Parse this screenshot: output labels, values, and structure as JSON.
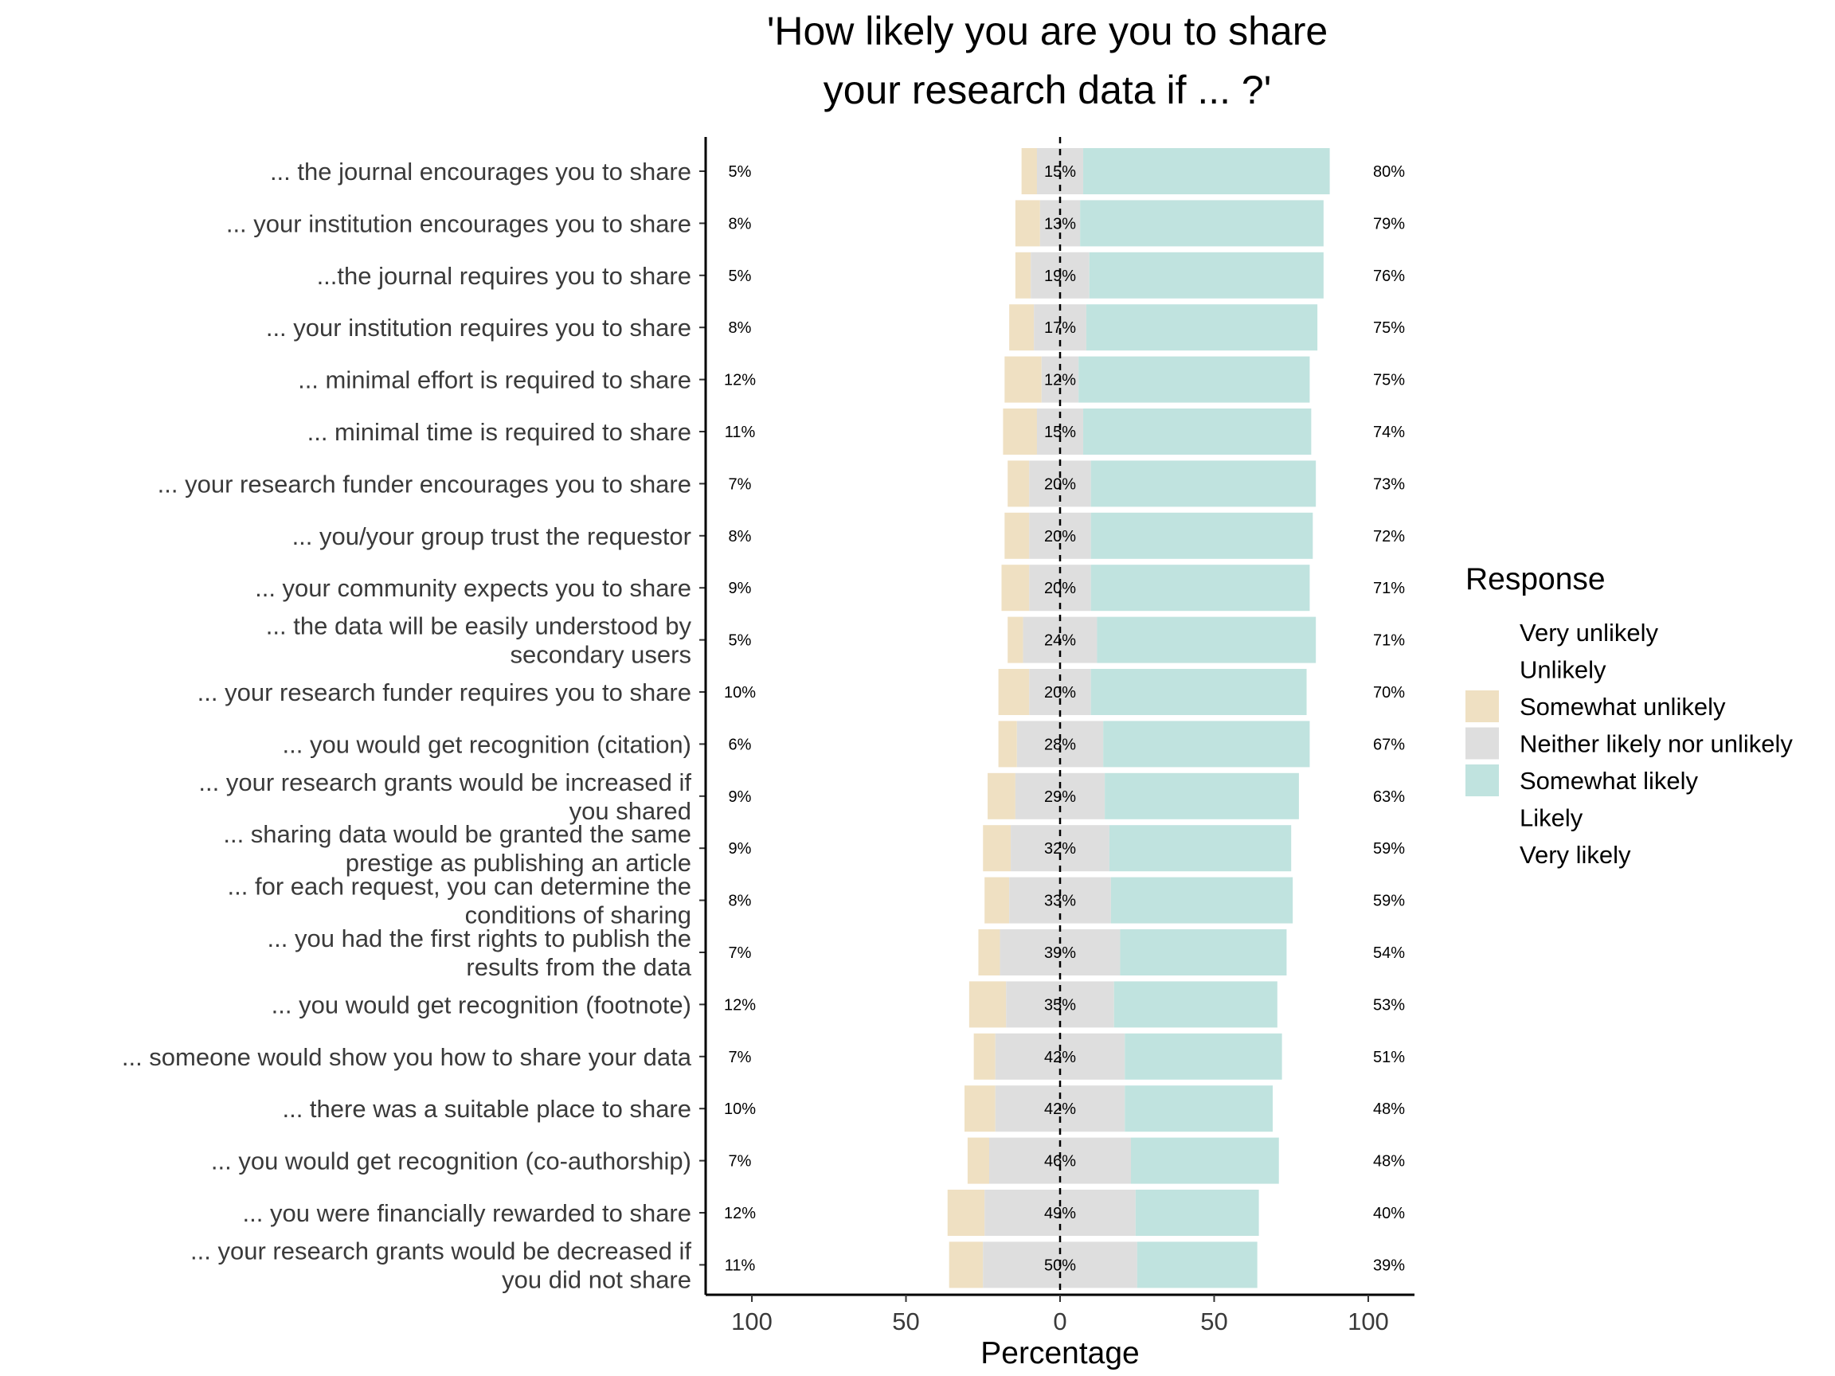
{
  "chart_data": {
    "type": "bar",
    "subtype": "diverging-stacked-likert",
    "title_lines": [
      "'How likely you are you to share",
      "your research data if ... ?'"
    ],
    "xlabel": "Percentage",
    "ylabel": "",
    "xlim": [
      -115,
      115
    ],
    "x_ticks": [
      -100,
      -50,
      0,
      50,
      100
    ],
    "x_tick_labels": [
      "100",
      "50",
      "0",
      "50",
      "100"
    ],
    "legend": {
      "title": "Response",
      "placement": "right",
      "entries": [
        {
          "label": "Very unlikely",
          "color": "#ffffff"
        },
        {
          "label": "Unlikely",
          "color": "#ffffff"
        },
        {
          "label": "Somewhat unlikely",
          "color": "#efe0c2"
        },
        {
          "label": "Neither likely nor unlikely",
          "color": "#dedede"
        },
        {
          "label": "Somewhat likely",
          "color": "#c0e3df"
        },
        {
          "label": "Likely",
          "color": "#ffffff"
        },
        {
          "label": "Very likely",
          "color": "#ffffff"
        }
      ]
    },
    "series": [
      {
        "name": "Somewhat unlikely",
        "color": "#efe0c2",
        "values": [
          5,
          8,
          5,
          8,
          12,
          11,
          7,
          8,
          9,
          5,
          10,
          6,
          9,
          9,
          8,
          7,
          12,
          7,
          10,
          7,
          12,
          11
        ]
      },
      {
        "name": "Neither likely nor unlikely",
        "color": "#dedede",
        "values": [
          15,
          13,
          19,
          17,
          12,
          15,
          20,
          20,
          20,
          24,
          20,
          28,
          29,
          32,
          33,
          39,
          35,
          42,
          42,
          46,
          49,
          50
        ]
      },
      {
        "name": "Somewhat likely",
        "color": "#c0e3df",
        "values": [
          80,
          79,
          76,
          75,
          75,
          74,
          73,
          72,
          71,
          71,
          70,
          67,
          63,
          59,
          59,
          54,
          53,
          51,
          48,
          48,
          40,
          39
        ]
      }
    ],
    "categories": [
      {
        "lines": [
          "... the journal encourages you to share"
        ],
        "low": "5%",
        "mid": "15%",
        "high": "80%"
      },
      {
        "lines": [
          "... your institution encourages you to share"
        ],
        "low": "8%",
        "mid": "13%",
        "high": "79%"
      },
      {
        "lines": [
          "...the journal requires you to share"
        ],
        "low": "5%",
        "mid": "19%",
        "high": "76%"
      },
      {
        "lines": [
          "... your institution requires you to share"
        ],
        "low": "8%",
        "mid": "17%",
        "high": "75%"
      },
      {
        "lines": [
          "... minimal effort is required to share"
        ],
        "low": "12%",
        "mid": "12%",
        "high": "75%"
      },
      {
        "lines": [
          "... minimal time is required to share"
        ],
        "low": "11%",
        "mid": "15%",
        "high": "74%"
      },
      {
        "lines": [
          "... your research funder encourages you to share"
        ],
        "low": "7%",
        "mid": "20%",
        "high": "73%"
      },
      {
        "lines": [
          "... you/your group trust the requestor"
        ],
        "low": "8%",
        "mid": "20%",
        "high": "72%"
      },
      {
        "lines": [
          "... your community expects you to share"
        ],
        "low": "9%",
        "mid": "20%",
        "high": "71%"
      },
      {
        "lines": [
          "... the data will be easily understood by",
          "secondary users"
        ],
        "low": "5%",
        "mid": "24%",
        "high": "71%"
      },
      {
        "lines": [
          "... your research funder requires you to share"
        ],
        "low": "10%",
        "mid": "20%",
        "high": "70%"
      },
      {
        "lines": [
          "... you would get recognition (citation)"
        ],
        "low": "6%",
        "mid": "28%",
        "high": "67%"
      },
      {
        "lines": [
          "... your research grants would be increased if",
          "you shared"
        ],
        "low": "9%",
        "mid": "29%",
        "high": "63%"
      },
      {
        "lines": [
          "... sharing data would be granted the same",
          "prestige as publishing an article"
        ],
        "low": "9%",
        "mid": "32%",
        "high": "59%"
      },
      {
        "lines": [
          "... for each request, you can determine the",
          "conditions of sharing"
        ],
        "low": "8%",
        "mid": "33%",
        "high": "59%"
      },
      {
        "lines": [
          "... you had the first rights to publish the",
          "results from the data"
        ],
        "low": "7%",
        "mid": "39%",
        "high": "54%"
      },
      {
        "lines": [
          "... you would get recognition (footnote)"
        ],
        "low": "12%",
        "mid": "35%",
        "high": "53%"
      },
      {
        "lines": [
          "... someone would show you how to share your data"
        ],
        "low": "7%",
        "mid": "42%",
        "high": "51%"
      },
      {
        "lines": [
          "... there was a suitable place to share"
        ],
        "low": "10%",
        "mid": "42%",
        "high": "48%"
      },
      {
        "lines": [
          "... you would get recognition (co-authorship)"
        ],
        "low": "7%",
        "mid": "46%",
        "high": "48%"
      },
      {
        "lines": [
          "... you were financially rewarded to share"
        ],
        "low": "12%",
        "mid": "49%",
        "high": "40%"
      },
      {
        "lines": [
          "... your research grants would be decreased if",
          "you did not share"
        ],
        "low": "11%",
        "mid": "50%",
        "high": "39%"
      }
    ]
  }
}
